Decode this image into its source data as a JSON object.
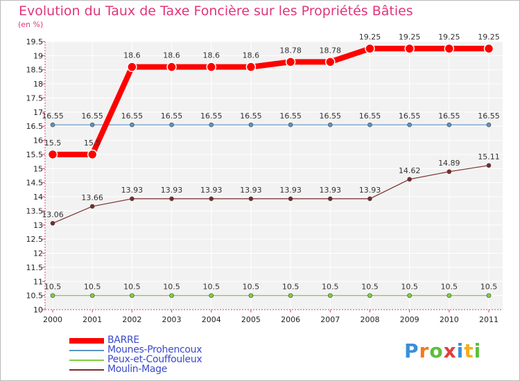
{
  "title": "Evolution du Taux de Taxe Foncière sur les Propriétés Bâties",
  "unit_label": "(en %)",
  "logo": "Proxiti",
  "chart_data": {
    "type": "line",
    "title": "Evolution du Taux de Taxe Foncière sur les Propriétés Bâties",
    "ylabel": "(en %)",
    "xlabel": "",
    "x": [
      "2000",
      "2001",
      "2002",
      "2003",
      "2004",
      "2005",
      "2006",
      "2007",
      "2008",
      "2009",
      "2010",
      "2011"
    ],
    "ylim": [
      10,
      19.5
    ],
    "yticks": [
      "10",
      "10.5",
      "11",
      "11.5",
      "12",
      "12.5",
      "13",
      "13.5",
      "14",
      "14.5",
      "15",
      "15.5",
      "16",
      "16.5",
      "17",
      "17.5",
      "18",
      "18.5",
      "19",
      "19.5"
    ],
    "series": [
      {
        "name": "BARRE",
        "color": "#ff0000",
        "values": [
          15.5,
          15.5,
          18.6,
          18.6,
          18.6,
          18.6,
          18.78,
          18.78,
          19.25,
          19.25,
          19.25,
          19.25
        ],
        "labels": [
          "15.5",
          "15.5",
          "18.6",
          "18.6",
          "18.6",
          "18.6",
          "18.78",
          "18.78",
          "19.25",
          "19.25",
          "19.25",
          "19.25"
        ]
      },
      {
        "name": "Mounes-Prohencoux",
        "color": "#5b93c4",
        "values": [
          16.55,
          16.55,
          16.55,
          16.55,
          16.55,
          16.55,
          16.55,
          16.55,
          16.55,
          16.55,
          16.55,
          16.55
        ],
        "labels": [
          "16.55",
          "16.55",
          "16.55",
          "16.55",
          "16.55",
          "16.55",
          "16.55",
          "16.55",
          "16.55",
          "16.55",
          "16.55",
          "16.55"
        ]
      },
      {
        "name": "Peux-et-Couffouleux",
        "color": "#7ccf3e",
        "values": [
          10.5,
          10.5,
          10.5,
          10.5,
          10.5,
          10.5,
          10.5,
          10.5,
          10.5,
          10.5,
          10.5,
          10.5
        ],
        "labels": [
          "10.5",
          "10.5",
          "10.5",
          "10.5",
          "10.5",
          "10.5",
          "10.5",
          "10.5",
          "10.5",
          "10.5",
          "10.5",
          "10.5"
        ]
      },
      {
        "name": "Moulin-Mage",
        "color": "#7a2b2b",
        "values": [
          13.06,
          13.66,
          13.93,
          13.93,
          13.93,
          13.93,
          13.93,
          13.93,
          13.93,
          14.62,
          14.89,
          15.11
        ],
        "labels": [
          "13.06",
          "13.66",
          "13.93",
          "13.93",
          "13.93",
          "13.93",
          "13.93",
          "13.93",
          "13.93",
          "14.62",
          "14.89",
          "15.11"
        ]
      }
    ]
  }
}
